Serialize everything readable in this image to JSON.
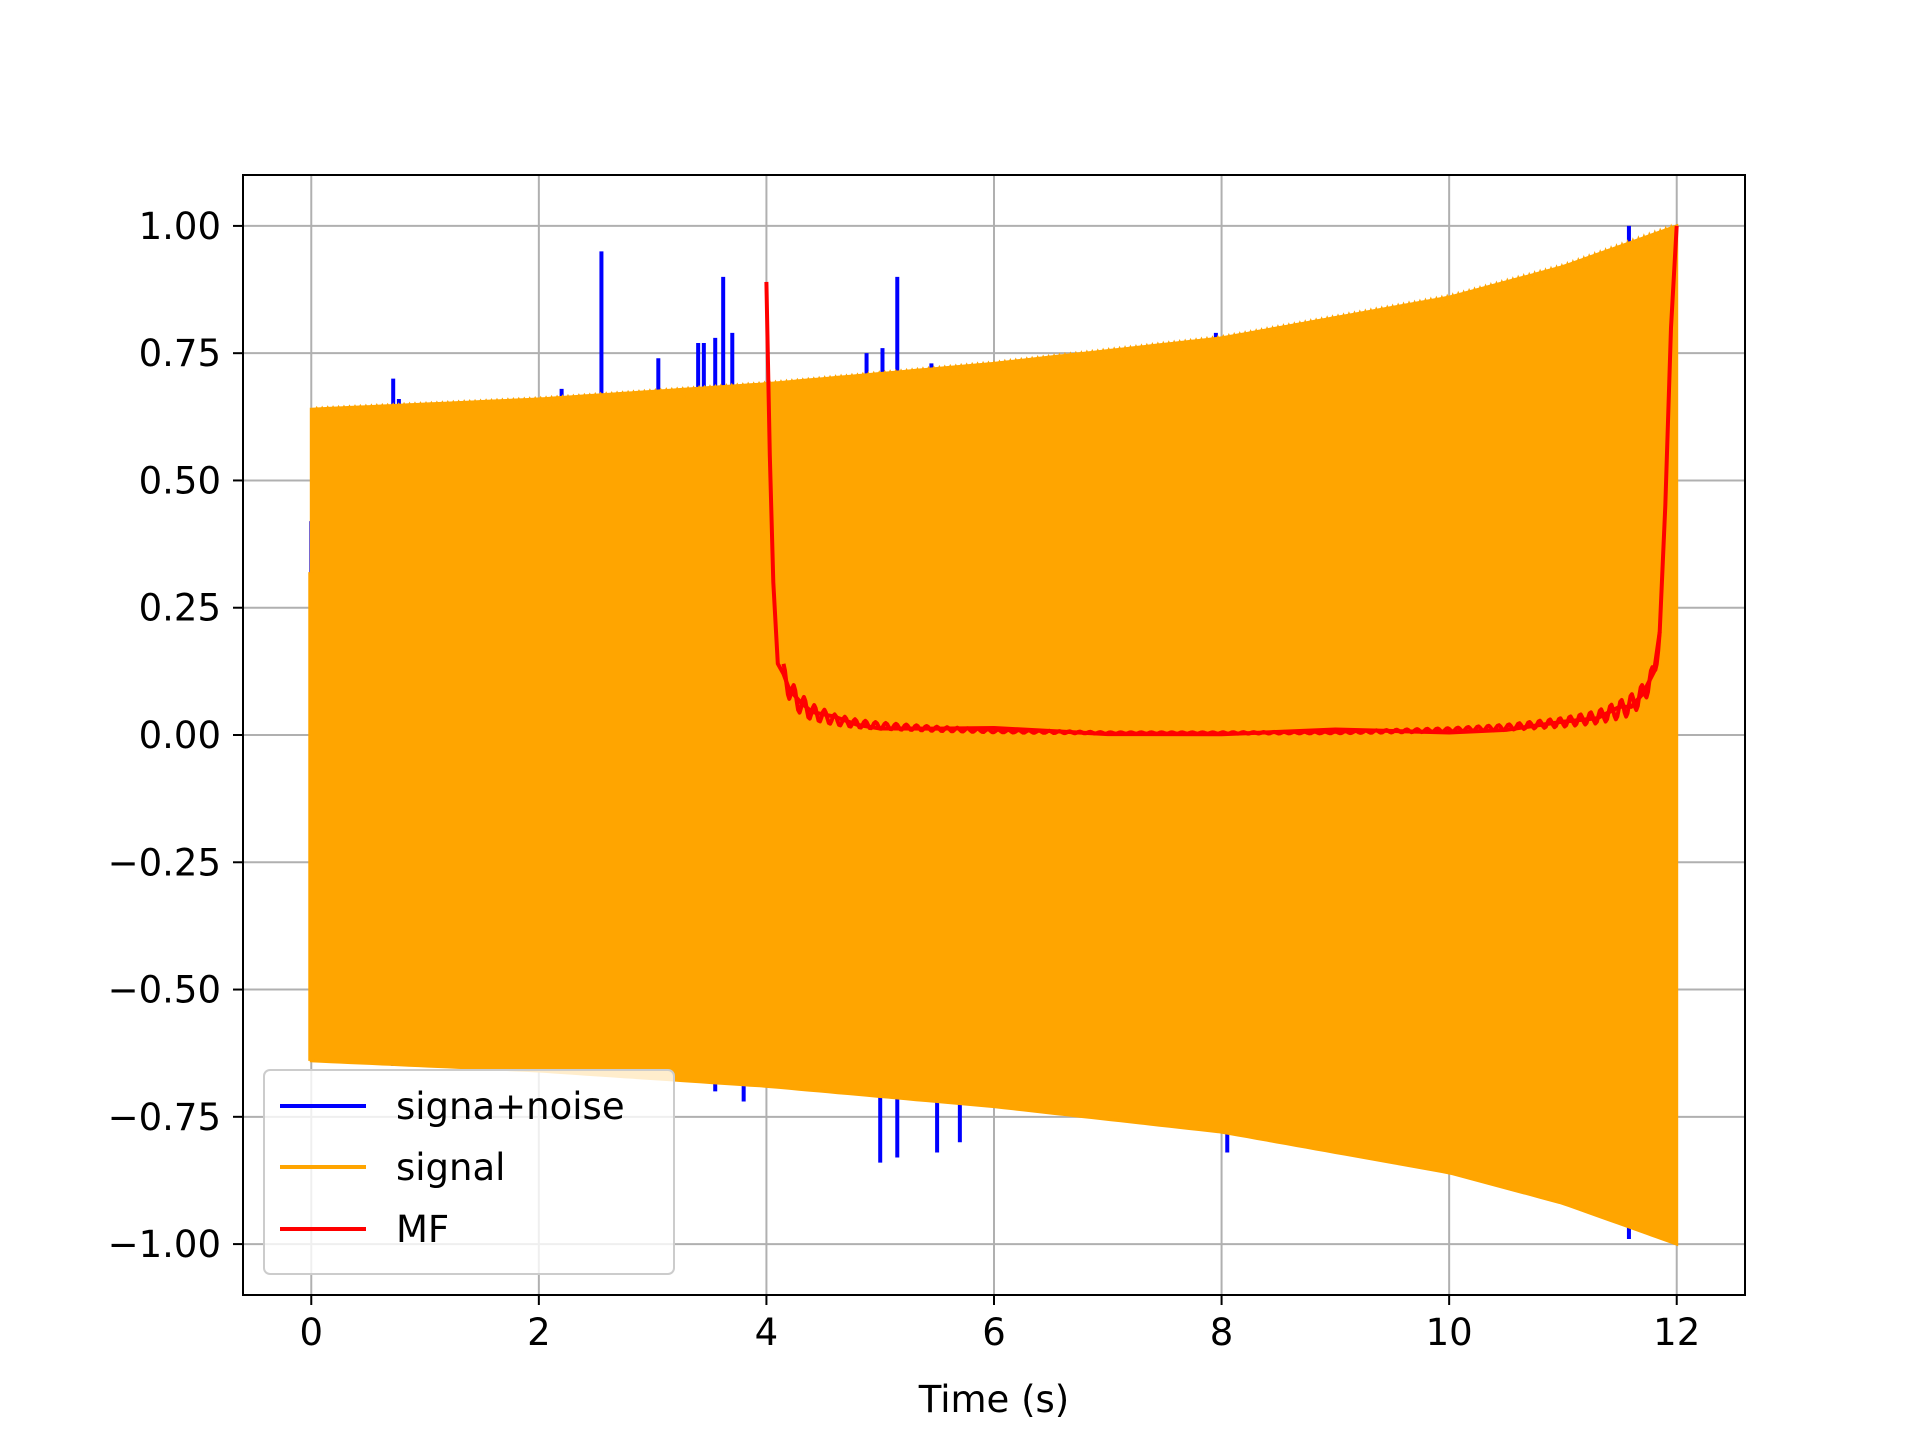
{
  "chart_data": {
    "type": "line",
    "title": "",
    "xlabel": "Time (s)",
    "ylabel": "",
    "xlim": [
      -0.6,
      12.6
    ],
    "ylim": [
      -1.1,
      1.1
    ],
    "xticks": [
      0,
      2,
      4,
      6,
      8,
      10,
      12
    ],
    "xtick_labels": [
      "0",
      "2",
      "4",
      "6",
      "8",
      "10",
      "12"
    ],
    "yticks": [
      1.0,
      0.75,
      0.5,
      0.25,
      0.0,
      -0.25,
      -0.5,
      -0.75,
      -1.0
    ],
    "ytick_labels": [
      "1.00",
      "0.75",
      "0.50",
      "0.25",
      "0.00",
      "−0.25",
      "−0.50",
      "−0.75",
      "−1.00"
    ],
    "grid": true,
    "legend_position": "lower-left",
    "series": [
      {
        "name": "signa+noise",
        "color": "#0000ff",
        "spikes": [
          {
            "x": 0.0,
            "y": 0.42
          },
          {
            "x": 0.0,
            "y": -0.31
          },
          {
            "x": 0.72,
            "y": 0.7
          },
          {
            "x": 0.77,
            "y": 0.66
          },
          {
            "x": 0.72,
            "y": -0.65
          },
          {
            "x": 2.2,
            "y": 0.68
          },
          {
            "x": 2.55,
            "y": 0.95
          },
          {
            "x": 3.05,
            "y": 0.74
          },
          {
            "x": 3.4,
            "y": 0.77
          },
          {
            "x": 3.45,
            "y": 0.77
          },
          {
            "x": 3.55,
            "y": 0.78
          },
          {
            "x": 3.62,
            "y": 0.9
          },
          {
            "x": 3.7,
            "y": 0.79
          },
          {
            "x": 3.55,
            "y": -0.7
          },
          {
            "x": 3.8,
            "y": -0.72
          },
          {
            "x": 4.88,
            "y": 0.75
          },
          {
            "x": 5.02,
            "y": 0.76
          },
          {
            "x": 5.15,
            "y": 0.9
          },
          {
            "x": 5.0,
            "y": -0.84
          },
          {
            "x": 5.15,
            "y": -0.83
          },
          {
            "x": 5.45,
            "y": 0.73
          },
          {
            "x": 5.5,
            "y": -0.82
          },
          {
            "x": 5.7,
            "y": -0.8
          },
          {
            "x": 7.95,
            "y": 0.79
          },
          {
            "x": 8.05,
            "y": -0.82
          },
          {
            "x": 11.58,
            "y": 1.0
          },
          {
            "x": 11.58,
            "y": -0.99
          }
        ]
      },
      {
        "name": "signal",
        "color": "#ffa500",
        "x_start": 0.0,
        "x_end": 12.0,
        "envelope": [
          [
            0.0,
            0.64
          ],
          [
            2.0,
            0.66
          ],
          [
            4.0,
            0.69
          ],
          [
            6.0,
            0.73
          ],
          [
            8.0,
            0.78
          ],
          [
            10.0,
            0.86
          ],
          [
            11.0,
            0.92
          ],
          [
            12.0,
            1.0
          ]
        ]
      },
      {
        "name": "MF",
        "color": "#ff0000",
        "x": [
          4.0,
          4.03,
          4.06,
          4.1,
          4.15,
          4.2,
          4.3,
          4.4,
          4.6,
          4.8,
          5.0,
          5.5,
          6.0,
          7.0,
          8.0,
          9.0,
          10.0,
          10.5,
          11.0,
          11.3,
          11.5,
          11.6,
          11.7,
          11.8,
          11.85,
          11.9,
          11.95,
          12.0
        ],
        "y": [
          0.89,
          0.55,
          0.3,
          0.14,
          0.12,
          0.09,
          0.06,
          0.045,
          0.03,
          0.022,
          0.018,
          0.012,
          0.008,
          0.004,
          0.004,
          0.005,
          0.01,
          0.015,
          0.025,
          0.035,
          0.05,
          0.06,
          0.08,
          0.12,
          0.2,
          0.45,
          0.8,
          1.0
        ]
      }
    ]
  }
}
